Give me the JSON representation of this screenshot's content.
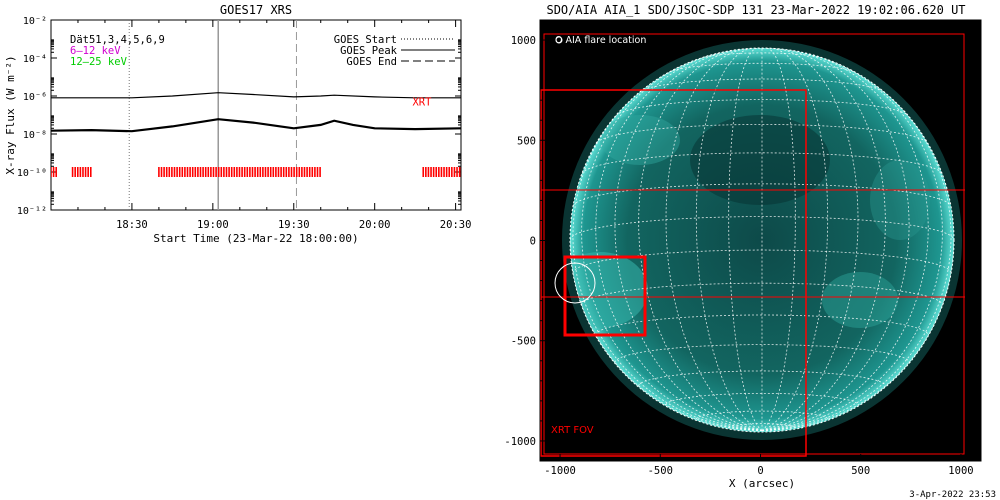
{
  "chart_data": [
    {
      "type": "line",
      "title": "GOES17 XRS",
      "xlabel": "Start Time (23-Mar-22 18:00:00)",
      "ylabel": "X-ray Flux (W m⁻²)",
      "y_scale": "log",
      "ylim": [
        1e-12,
        0.01
      ],
      "xlim": [
        "18:00",
        "20:32"
      ],
      "x_ticks": [
        "18:30",
        "19:00",
        "19:30",
        "20:00",
        "20:30"
      ],
      "y_ticks": [
        "10⁻¹²",
        "10⁻¹⁰",
        "10⁻⁸",
        "10⁻⁶",
        "10⁻⁴",
        "10⁻²"
      ],
      "y_tick_values": [
        1e-12,
        1e-10,
        1e-08,
        1e-06,
        0.0001,
        0.01
      ],
      "info_text": [
        "Dät51,3,4,5,6,9",
        "6–12 keV",
        "12–25 keV"
      ],
      "info_colors": [
        "#000000",
        "#d000d0",
        "#00cc00"
      ],
      "legend": {
        "placement": "top-right",
        "entries": [
          {
            "label": "GOES Start",
            "style": "dotted"
          },
          {
            "label": "GOES Peak",
            "style": "solid"
          },
          {
            "label": "GOES End",
            "style": "dashed"
          }
        ]
      },
      "markers": {
        "start": "18:29",
        "peak": "19:02",
        "end": "19:31"
      },
      "annotation": {
        "text": "XRT",
        "color": "#ff0000",
        "time": "20:14",
        "flux": 5e-07
      },
      "series": [
        {
          "name": "6–12 keV",
          "color": "#000000",
          "x": [
            "18:00",
            "18:15",
            "18:30",
            "18:45",
            "19:02",
            "19:15",
            "19:30",
            "19:40",
            "19:45",
            "20:00",
            "20:15",
            "20:32"
          ],
          "values": [
            8e-07,
            8e-07,
            8e-07,
            1e-06,
            1.5e-06,
            1.2e-06,
            9e-07,
            1e-06,
            1.1e-06,
            9e-07,
            8e-07,
            8e-07
          ]
        },
        {
          "name": "12–25 keV",
          "color": "#000000",
          "x": [
            "18:00",
            "18:15",
            "18:30",
            "18:45",
            "19:02",
            "19:15",
            "19:30",
            "19:40",
            "19:45",
            "19:52",
            "20:00",
            "20:15",
            "20:32"
          ],
          "values": [
            1.5e-08,
            1.6e-08,
            1.4e-08,
            2.5e-08,
            6e-08,
            4e-08,
            2e-08,
            3e-08,
            5e-08,
            3e-08,
            2e-08,
            1.8e-08,
            2e-08
          ]
        }
      ],
      "red_bars": [
        [
          "18:00",
          "18:02"
        ],
        [
          "18:08",
          "18:15"
        ],
        [
          "18:40",
          "19:40"
        ],
        [
          "20:18",
          "20:32"
        ]
      ],
      "red_bar_color": "#ff0000"
    },
    {
      "type": "image",
      "title": "SDO/AIA AIA_1 SDO/JSOC-SDP 131 23-Mar-2022 19:02:06.620 UT",
      "xlabel": "X (arcsec)",
      "ylabel": "",
      "xlim": [
        -1100,
        1100
      ],
      "ylim": [
        -1100,
        1100
      ],
      "x_ticks": [
        -1000,
        -500,
        0,
        500,
        1000
      ],
      "y_ticks": [
        -1000,
        -500,
        0,
        500,
        1000
      ],
      "legend_text": "O AIA flare location",
      "fov_label": "XRT FOV",
      "fov_color": "#ff0000",
      "disk_color": "#1f9f9a",
      "grid_color": "#ffffff",
      "timestamp": "3-Apr-2022 23:53"
    }
  ]
}
